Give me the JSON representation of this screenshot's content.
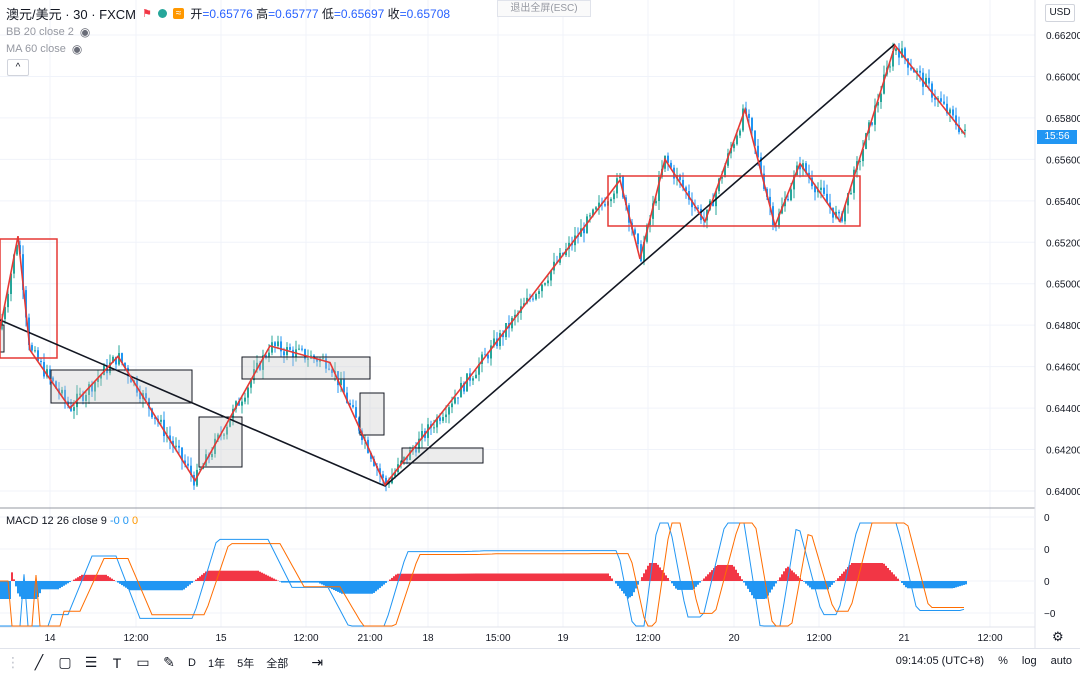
{
  "header": {
    "symbol": "澳元/美元 · 30 · FXCM",
    "badge": "≈",
    "ohlc": {
      "open_label": "开",
      "open": "=0.65776",
      "high_label": "高",
      "high": "=0.65777",
      "low_label": "低",
      "low": "=0.65697",
      "close_label": "收",
      "close": "=0.65708"
    },
    "indicator1": "BB 20 close 2",
    "indicator2": "MA 60 close",
    "collapse_label": "^",
    "fullscreen_exit": "退出全屏(ESC)",
    "currency": "USD"
  },
  "price_axis": {
    "ticks": [
      "0.66200",
      "0.66000",
      "0.65800",
      "0.65600",
      "0.65400",
      "0.65200",
      "0.65000",
      "0.64800",
      "0.64600",
      "0.64400",
      "0.64200",
      "0.64000"
    ],
    "countdown": "15:56"
  },
  "time_axis": {
    "ticks": [
      "14",
      "12:00",
      "15",
      "12:00",
      "21:00",
      "18",
      "15:00",
      "19",
      "12:00",
      "20",
      "12:00",
      "21",
      "12:00"
    ]
  },
  "macd": {
    "label": "MACD 12 26 close 9",
    "values": [
      "-0",
      "0",
      "0"
    ],
    "axis_ticks": [
      "0",
      "0",
      "0",
      "−0"
    ]
  },
  "bottom_toolbar": {
    "ranges": [
      "D",
      "1年",
      "5年",
      "全部"
    ],
    "clock": "09:14:05 (UTC+8)",
    "opts": [
      "%",
      "log",
      "auto"
    ]
  },
  "chart_data": {
    "type": "candlestick",
    "y_range": [
      0.6395,
      0.6625
    ],
    "waypoints": [
      [
        0,
        0.6478
      ],
      [
        18,
        0.6523
      ],
      [
        30,
        0.6468
      ],
      [
        70,
        0.644
      ],
      [
        118,
        0.6465
      ],
      [
        195,
        0.6405
      ],
      [
        270,
        0.647
      ],
      [
        330,
        0.6462
      ],
      [
        385,
        0.6403
      ],
      [
        465,
        0.6452
      ],
      [
        560,
        0.6512
      ],
      [
        620,
        0.655
      ],
      [
        640,
        0.6512
      ],
      [
        665,
        0.656
      ],
      [
        705,
        0.653
      ],
      [
        745,
        0.6584
      ],
      [
        775,
        0.6528
      ],
      [
        800,
        0.6558
      ],
      [
        840,
        0.653
      ],
      [
        895,
        0.6615
      ],
      [
        965,
        0.6572
      ]
    ]
  },
  "colors": {
    "up": "#26a69a",
    "down": "#2196f3",
    "zigzag": "#f23645",
    "trend": "#131722"
  }
}
